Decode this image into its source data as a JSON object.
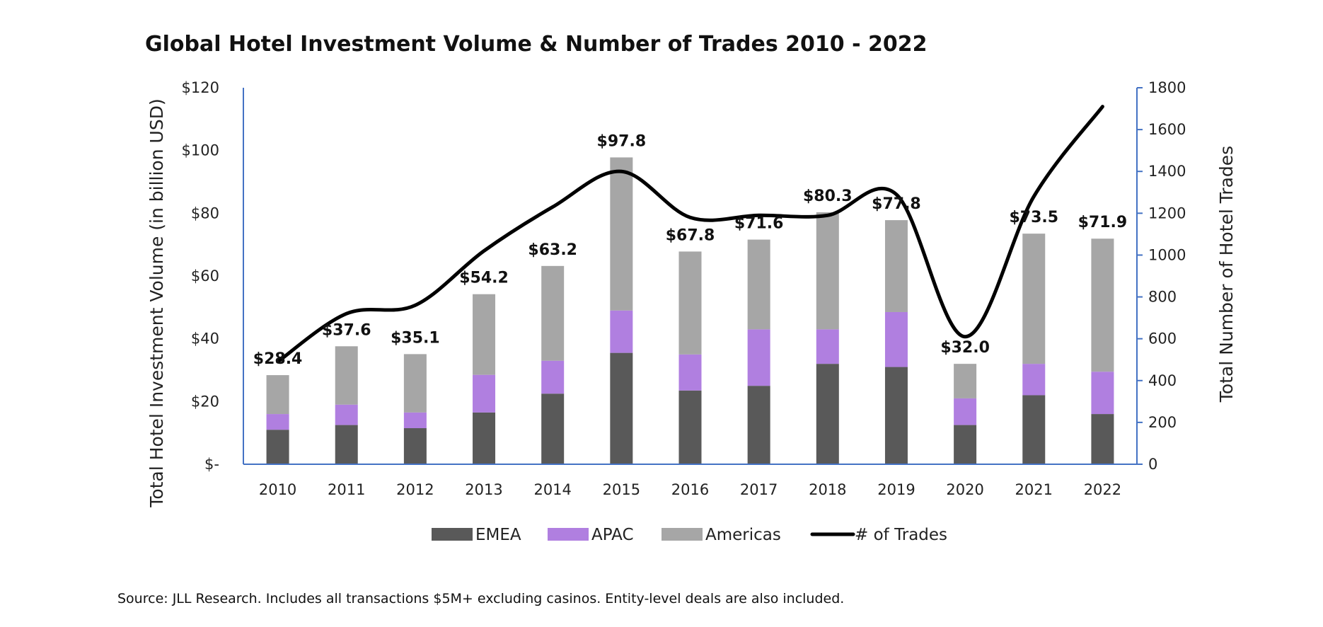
{
  "chart_data": {
    "type": "bar",
    "title": "Global Hotel Investment Volume & Number of Trades 2010 - 2022",
    "categories": [
      "2010",
      "2011",
      "2012",
      "2013",
      "2014",
      "2015",
      "2016",
      "2017",
      "2018",
      "2019",
      "2020",
      "2021",
      "2022"
    ],
    "series": [
      {
        "name": "EMEA",
        "color": "#595959",
        "type": "bar",
        "stack": "volume",
        "values": [
          11,
          12.5,
          11.5,
          16.5,
          22.5,
          35.5,
          23.5,
          25,
          32,
          31,
          12.5,
          22,
          16
        ]
      },
      {
        "name": "APAC",
        "color": "#b07fe0",
        "type": "bar",
        "stack": "volume",
        "values": [
          5,
          6.5,
          5,
          12,
          10.5,
          13.5,
          11.5,
          18,
          11,
          17.5,
          8.5,
          10,
          13.5
        ]
      },
      {
        "name": "Americas",
        "color": "#a6a6a6",
        "type": "bar",
        "stack": "volume",
        "values": [
          12.4,
          18.6,
          18.6,
          25.7,
          30.2,
          48.8,
          32.8,
          28.6,
          37.3,
          29.3,
          11,
          41.5,
          42.4
        ]
      },
      {
        "name": "# of Trades",
        "color": "#000000",
        "type": "line",
        "axis": "right",
        "values": [
          490,
          720,
          760,
          1020,
          1230,
          1400,
          1180,
          1190,
          1190,
          1290,
          610,
          1280,
          1710
        ]
      }
    ],
    "totals_labels": [
      "$28.4",
      "$37.6",
      "$35.1",
      "$54.2",
      "$63.2",
      "$97.8",
      "$67.8",
      "$71.6",
      "$80.3",
      "$77.8",
      "$32.0",
      "$73.5",
      "$71.9"
    ],
    "totals": [
      28.4,
      37.6,
      35.1,
      54.2,
      63.2,
      97.8,
      67.8,
      71.6,
      80.3,
      77.8,
      32.0,
      73.5,
      71.9
    ],
    "ylabel": "Total Hotel Investment Volume (in billion USD)",
    "y2label": "Total Number of Hotel Trades",
    "ylim": [
      0,
      120
    ],
    "y2lim": [
      0,
      1800
    ],
    "yticks": [
      0,
      20,
      40,
      60,
      80,
      100,
      120
    ],
    "ytick_labels": [
      "$-",
      "$20",
      "$40",
      "$60",
      "$80",
      "$100",
      "$120"
    ],
    "y2ticks": [
      0,
      200,
      400,
      600,
      800,
      1000,
      1200,
      1400,
      1600,
      1800
    ],
    "y2tick_labels": [
      "0",
      "200",
      "400",
      "600",
      "800",
      "1000",
      "1200",
      "1400",
      "1600",
      "1800"
    ],
    "legend_position": "bottom",
    "grid": false,
    "axis_color": "#4472c4"
  },
  "source_note": "Source: JLL Research. Includes all transactions $5M+ excluding casinos. Entity-level deals are also included."
}
